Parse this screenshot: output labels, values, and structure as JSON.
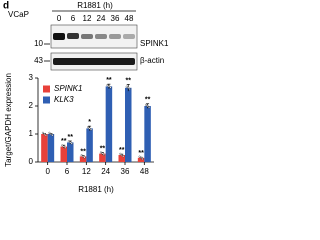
{
  "panel": "d",
  "blot": {
    "cell_line": "VCaP",
    "treatment": "R1881 (h)",
    "lanes": [
      "0",
      "6",
      "12",
      "24",
      "36",
      "48"
    ],
    "markers": [
      "10",
      "43"
    ],
    "proteins": [
      "SPINK1",
      "β-actin"
    ]
  },
  "chart_data": {
    "type": "bar",
    "y_label": "Target/GAPDH expression",
    "x_label": "R1881 (h)",
    "categories": [
      "0",
      "6",
      "12",
      "24",
      "36",
      "48"
    ],
    "series": [
      {
        "name": "SPINK1",
        "color": "#e8413a",
        "values": [
          1.0,
          0.55,
          0.2,
          0.3,
          0.25,
          0.15
        ],
        "errors": [
          0.02,
          0.05,
          0.03,
          0.04,
          0.03,
          0.02
        ],
        "annotations": [
          null,
          "**",
          "**",
          "**",
          "**",
          "**"
        ]
      },
      {
        "name": "KLK3",
        "color": "#2f5fb3",
        "values": [
          1.0,
          0.7,
          1.2,
          2.7,
          2.65,
          2.0
        ],
        "errors": [
          0.02,
          0.05,
          0.08,
          0.08,
          0.12,
          0.08
        ],
        "annotations": [
          null,
          "**",
          "*",
          "**",
          "**",
          "**"
        ]
      }
    ],
    "ylim": [
      0,
      3
    ],
    "yticks": [
      0,
      1,
      2,
      3
    ],
    "legend": "upper-left"
  }
}
